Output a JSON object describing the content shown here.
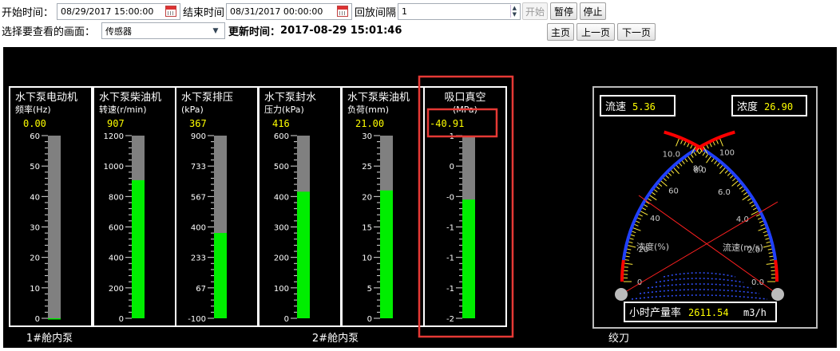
{
  "toolbar": {
    "start_label": "开始时间：",
    "start_value": "08/29/2017 15:00:00",
    "end_label": "结束时间",
    "end_value": "08/31/2017 00:00:00",
    "interval_label": "回放间隔",
    "interval_value": "1",
    "btn_start": "开始",
    "btn_pause": "暂停",
    "btn_stop": "停止",
    "view_label": "选择要查看的画面：",
    "view_value": "传感器",
    "update_label": "更新时间：",
    "update_value": "2017-08-29 15:01:46",
    "btn_home": "主页",
    "btn_prev": "上一页",
    "btn_next": "下一页"
  },
  "gauges": [
    {
      "title1": "水下泵电动机",
      "title2": "频率(Hz)",
      "value": "0.00",
      "fill": 0.0,
      "ticks": [
        "60",
        "50",
        "40",
        "30",
        "20",
        "10",
        "0"
      ],
      "highlight": false
    },
    {
      "title1": "水下泵柴油机",
      "title2": "转速(r/min)",
      "value": "907",
      "fill": 0.756,
      "ticks": [
        "1200",
        "1000",
        "800",
        "600",
        "400",
        "200",
        "0"
      ],
      "highlight": false
    },
    {
      "title1": "水下泵排压",
      "title2": "(kPa)",
      "value": "367",
      "fill": 0.467,
      "ticks": [
        "900",
        "733",
        "567",
        "400",
        "233",
        "67",
        "-100"
      ],
      "highlight": false
    },
    {
      "title1": "水下泵封水",
      "title2": "压力(kPa)",
      "value": "416",
      "fill": 0.693,
      "ticks": [
        "600",
        "500",
        "400",
        "300",
        "200",
        "100",
        "0"
      ],
      "highlight": false
    },
    {
      "title1": "水下泵柴油机",
      "title2": "负荷(mm)",
      "value": "21.00",
      "fill": 0.7,
      "ticks": [
        "30",
        "25",
        "20",
        "15",
        "10",
        "5",
        "0"
      ],
      "highlight": false
    },
    {
      "title1": "吸口真空",
      "title2": "(MPa)",
      "value": "-40.91",
      "fill": 0.65,
      "ticks": [
        "1",
        "0",
        "-0",
        "-1",
        "-1",
        "-1",
        "-2"
      ],
      "highlight": true
    }
  ],
  "section_labels": {
    "left": "1#舱内泵",
    "middle": "2#舱内泵",
    "right": "绞刀"
  },
  "meter": {
    "flow_label": "流速",
    "flow_value": "5.36",
    "density_label": "浓度",
    "density_value": "26.90",
    "left_scale": [
      "0",
      "20",
      "40",
      "60",
      "80",
      "100"
    ],
    "right_scale": [
      "0.0",
      "2.0",
      "4.0",
      "6.0",
      "8.0",
      "10.0"
    ],
    "left_caption": "浓度(%)",
    "right_caption": "流速(m/s)",
    "prod_label": "小时产量率",
    "prod_value": "2611.54",
    "prod_unit": "m3/h"
  },
  "colors": {
    "bar_fill": "#00ee00",
    "bar_empty": "#808080",
    "value_text": "#ffff00",
    "highlight": "#e53935",
    "scale_blue": "#2040ff",
    "scale_red": "#ff0000"
  }
}
